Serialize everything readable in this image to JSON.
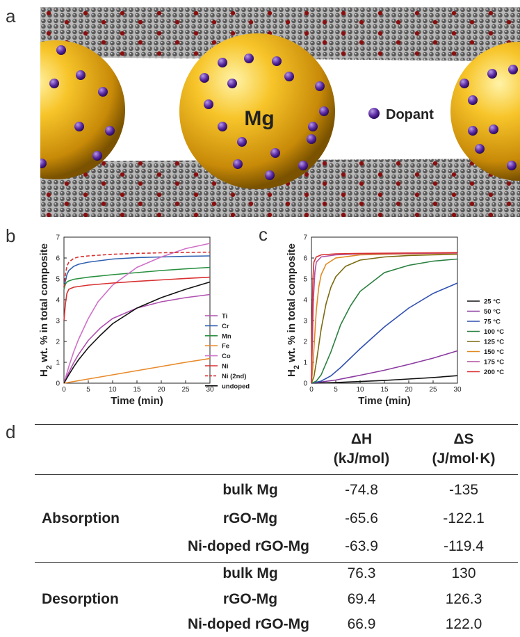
{
  "panel_letters": {
    "a": "a",
    "b": "b",
    "c": "c",
    "d": "d"
  },
  "illustration": {
    "mg_label": "Mg",
    "dopant_label": "Dopant"
  },
  "colors": {
    "Ti": "#b050b0",
    "Cr": "#3060b0",
    "Mn": "#2a9040",
    "Fe": "#e88a2a",
    "Co": "#d070c8",
    "Ni": "#d83030",
    "undoped": "#111111",
    "T25": "#111111",
    "T50": "#8a3aa0",
    "T75": "#3050b0",
    "T100": "#2a8040",
    "T125": "#7a6a10",
    "T150": "#e08a20",
    "T175": "#b050a0",
    "T200": "#d83030"
  },
  "chart_data": [
    {
      "type": "line",
      "ylabel": "H2 wt. % in total composite",
      "xlabel": "Time (min)",
      "xlim": [
        0,
        30
      ],
      "ylim": [
        0,
        7
      ],
      "xticks": [
        "0",
        "5",
        "10",
        "15",
        "20",
        "25",
        "30"
      ],
      "yticks": [
        "0",
        "1",
        "2",
        "3",
        "4",
        "5",
        "6",
        "7"
      ],
      "legend_position": "right",
      "series": [
        {
          "name": "Ti",
          "style": "solid",
          "color_key": "Ti",
          "points": [
            [
              0,
              0
            ],
            [
              0.5,
              0.28
            ],
            [
              1,
              0.52
            ],
            [
              2,
              0.98
            ],
            [
              3,
              1.38
            ],
            [
              5,
              2.05
            ],
            [
              7.5,
              2.65
            ],
            [
              10,
              3.1
            ],
            [
              15,
              3.6
            ],
            [
              20,
              3.9
            ],
            [
              25,
              4.1
            ],
            [
              30,
              4.25
            ]
          ]
        },
        {
          "name": "Cr",
          "style": "solid",
          "color_key": "Cr",
          "points": [
            [
              0,
              4.6
            ],
            [
              0.3,
              4.9
            ],
            [
              0.6,
              5.2
            ],
            [
              1,
              5.4
            ],
            [
              2,
              5.6
            ],
            [
              3,
              5.7
            ],
            [
              5,
              5.8
            ],
            [
              10,
              5.95
            ],
            [
              15,
              6.02
            ],
            [
              20,
              6.05
            ],
            [
              25,
              6.08
            ],
            [
              30,
              6.1
            ]
          ]
        },
        {
          "name": "Mn",
          "style": "solid",
          "color_key": "Mn",
          "points": [
            [
              0,
              4.5
            ],
            [
              0.3,
              4.75
            ],
            [
              0.6,
              4.85
            ],
            [
              1,
              4.9
            ],
            [
              2,
              4.98
            ],
            [
              5,
              5.08
            ],
            [
              10,
              5.2
            ],
            [
              15,
              5.3
            ],
            [
              20,
              5.4
            ],
            [
              25,
              5.48
            ],
            [
              30,
              5.55
            ]
          ]
        },
        {
          "name": "Fe",
          "style": "solid",
          "color_key": "Fe",
          "points": [
            [
              0,
              0
            ],
            [
              5,
              0.2
            ],
            [
              10,
              0.4
            ],
            [
              15,
              0.6
            ],
            [
              20,
              0.8
            ],
            [
              25,
              1.0
            ],
            [
              30,
              1.18
            ]
          ]
        },
        {
          "name": "Co",
          "style": "solid",
          "color_key": "Co",
          "points": [
            [
              0,
              0
            ],
            [
              1,
              0.8
            ],
            [
              2,
              1.5
            ],
            [
              3,
              2.1
            ],
            [
              5,
              3.1
            ],
            [
              7,
              3.9
            ],
            [
              10,
              4.7
            ],
            [
              15,
              5.55
            ],
            [
              20,
              6.05
            ],
            [
              25,
              6.45
            ],
            [
              30,
              6.7
            ]
          ]
        },
        {
          "name": "Ni",
          "style": "solid",
          "color_key": "Ni",
          "points": [
            [
              0,
              3.0
            ],
            [
              0.3,
              3.8
            ],
            [
              0.6,
              4.3
            ],
            [
              1,
              4.5
            ],
            [
              2,
              4.6
            ],
            [
              5,
              4.7
            ],
            [
              10,
              4.8
            ],
            [
              15,
              4.88
            ],
            [
              20,
              4.95
            ],
            [
              25,
              5.02
            ],
            [
              30,
              5.08
            ]
          ]
        },
        {
          "name": "Ni (2nd)",
          "style": "dashed",
          "color_key": "Ni",
          "points": [
            [
              0,
              4.6
            ],
            [
              0.3,
              5.2
            ],
            [
              0.6,
              5.6
            ],
            [
              1,
              5.8
            ],
            [
              2,
              5.98
            ],
            [
              3,
              6.05
            ],
            [
              5,
              6.1
            ],
            [
              10,
              6.18
            ],
            [
              15,
              6.22
            ],
            [
              20,
              6.25
            ],
            [
              25,
              6.27
            ],
            [
              30,
              6.28
            ]
          ]
        },
        {
          "name": "undoped",
          "style": "solid",
          "color_key": "undoped",
          "points": [
            [
              0,
              0
            ],
            [
              1,
              0.4
            ],
            [
              2,
              0.78
            ],
            [
              3,
              1.12
            ],
            [
              5,
              1.7
            ],
            [
              7.5,
              2.3
            ],
            [
              10,
              2.85
            ],
            [
              15,
              3.6
            ],
            [
              20,
              4.1
            ],
            [
              25,
              4.5
            ],
            [
              30,
              4.85
            ]
          ]
        }
      ]
    },
    {
      "type": "line",
      "ylabel": "H2 wt. % in total composite",
      "xlabel": "Time (min)",
      "xlim": [
        0,
        30
      ],
      "ylim": [
        0,
        7
      ],
      "xticks": [
        "0",
        "5",
        "10",
        "15",
        "20",
        "25",
        "30"
      ],
      "yticks": [
        "0",
        "1",
        "2",
        "3",
        "4",
        "5",
        "6",
        "7"
      ],
      "legend_position": "right",
      "series": [
        {
          "name": "25 °C",
          "color_key": "T25",
          "points": [
            [
              0,
              0
            ],
            [
              5,
              0.03
            ],
            [
              10,
              0.08
            ],
            [
              15,
              0.13
            ],
            [
              20,
              0.2
            ],
            [
              25,
              0.27
            ],
            [
              30,
              0.36
            ]
          ]
        },
        {
          "name": "50 °C",
          "color_key": "T50",
          "points": [
            [
              0,
              0
            ],
            [
              5,
              0.15
            ],
            [
              10,
              0.38
            ],
            [
              15,
              0.62
            ],
            [
              20,
              0.9
            ],
            [
              25,
              1.2
            ],
            [
              30,
              1.55
            ]
          ]
        },
        {
          "name": "75 °C",
          "color_key": "T75",
          "points": [
            [
              0,
              0
            ],
            [
              2,
              0.1
            ],
            [
              4,
              0.35
            ],
            [
              6,
              0.75
            ],
            [
              8,
              1.2
            ],
            [
              10,
              1.65
            ],
            [
              15,
              2.7
            ],
            [
              20,
              3.6
            ],
            [
              25,
              4.3
            ],
            [
              30,
              4.8
            ]
          ]
        },
        {
          "name": "100 °C",
          "color_key": "T100",
          "points": [
            [
              0,
              0
            ],
            [
              1,
              0.1
            ],
            [
              2,
              0.4
            ],
            [
              4,
              1.5
            ],
            [
              6,
              2.8
            ],
            [
              8,
              3.7
            ],
            [
              10,
              4.4
            ],
            [
              15,
              5.3
            ],
            [
              20,
              5.65
            ],
            [
              25,
              5.85
            ],
            [
              30,
              5.95
            ]
          ]
        },
        {
          "name": "125 °C",
          "color_key": "T125",
          "points": [
            [
              0,
              0
            ],
            [
              0.5,
              0.3
            ],
            [
              1,
              1.0
            ],
            [
              2,
              2.6
            ],
            [
              3,
              3.8
            ],
            [
              4,
              4.6
            ],
            [
              5,
              5.1
            ],
            [
              7,
              5.6
            ],
            [
              10,
              5.9
            ],
            [
              15,
              6.05
            ],
            [
              20,
              6.12
            ],
            [
              25,
              6.15
            ],
            [
              30,
              6.18
            ]
          ]
        },
        {
          "name": "150 °C",
          "color_key": "T150",
          "points": [
            [
              0,
              0
            ],
            [
              0.3,
              0.8
            ],
            [
              0.6,
              2.0
            ],
            [
              1,
              3.5
            ],
            [
              1.5,
              4.6
            ],
            [
              2,
              5.2
            ],
            [
              3,
              5.7
            ],
            [
              5,
              6.0
            ],
            [
              10,
              6.15
            ],
            [
              20,
              6.2
            ],
            [
              30,
              6.22
            ]
          ]
        },
        {
          "name": "175 °C",
          "color_key": "T175",
          "points": [
            [
              0,
              0
            ],
            [
              0.2,
              2.0
            ],
            [
              0.4,
              4.0
            ],
            [
              0.7,
              5.3
            ],
            [
              1,
              5.8
            ],
            [
              2,
              6.05
            ],
            [
              5,
              6.15
            ],
            [
              10,
              6.2
            ],
            [
              20,
              6.22
            ],
            [
              30,
              6.24
            ]
          ]
        },
        {
          "name": "200 °C",
          "color_key": "T200",
          "points": [
            [
              0,
              0
            ],
            [
              0.15,
              3.0
            ],
            [
              0.3,
              5.0
            ],
            [
              0.5,
              5.8
            ],
            [
              1,
              6.05
            ],
            [
              2,
              6.15
            ],
            [
              5,
              6.2
            ],
            [
              10,
              6.22
            ],
            [
              20,
              6.24
            ],
            [
              30,
              6.26
            ]
          ]
        }
      ]
    },
    {
      "type": "table",
      "headers": [
        [
          "ΔH",
          "(kJ/mol)"
        ],
        [
          "ΔS",
          "(J/mol·K)"
        ]
      ],
      "groups": [
        {
          "label": "Absorption",
          "rows": [
            {
              "material": "bulk Mg",
              "dH": "-74.8",
              "dS": "-135"
            },
            {
              "material": "rGO-Mg",
              "dH": "-65.6",
              "dS": "-122.1"
            },
            {
              "material": "Ni-doped rGO-Mg",
              "dH": "-63.9",
              "dS": "-119.4"
            }
          ]
        },
        {
          "label": "Desorption",
          "rows": [
            {
              "material": "bulk Mg",
              "dH": "76.3",
              "dS": "130"
            },
            {
              "material": "rGO-Mg",
              "dH": "69.4",
              "dS": "126.3"
            },
            {
              "material": "Ni-doped rGO-Mg",
              "dH": "66.9",
              "dS": "122.0"
            }
          ]
        }
      ]
    }
  ]
}
